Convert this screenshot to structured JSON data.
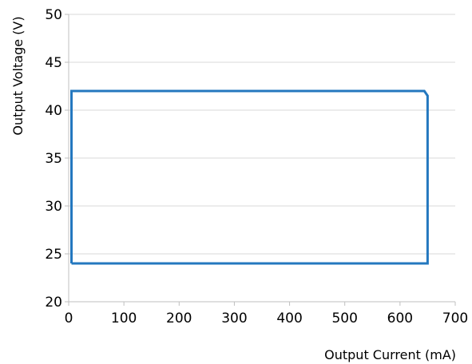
{
  "chart_data": {
    "type": "line",
    "title": "",
    "xlabel": "Output Current (mA)",
    "ylabel": "Output Voltage (V)",
    "xlim": [
      0,
      700
    ],
    "ylim": [
      20,
      50
    ],
    "xticks": [
      0,
      100,
      200,
      300,
      400,
      500,
      600,
      700
    ],
    "yticks": [
      20,
      25,
      30,
      35,
      40,
      45,
      50
    ],
    "grid": "horizontal",
    "legend": "none",
    "series": [
      {
        "color": "#2478bf",
        "points": [
          {
            "x": 5,
            "y": 24
          },
          {
            "x": 5,
            "y": 42
          },
          {
            "x": 644,
            "y": 42
          },
          {
            "x": 650,
            "y": 41.5
          },
          {
            "x": 650,
            "y": 24
          },
          {
            "x": 5,
            "y": 24
          }
        ]
      }
    ]
  }
}
